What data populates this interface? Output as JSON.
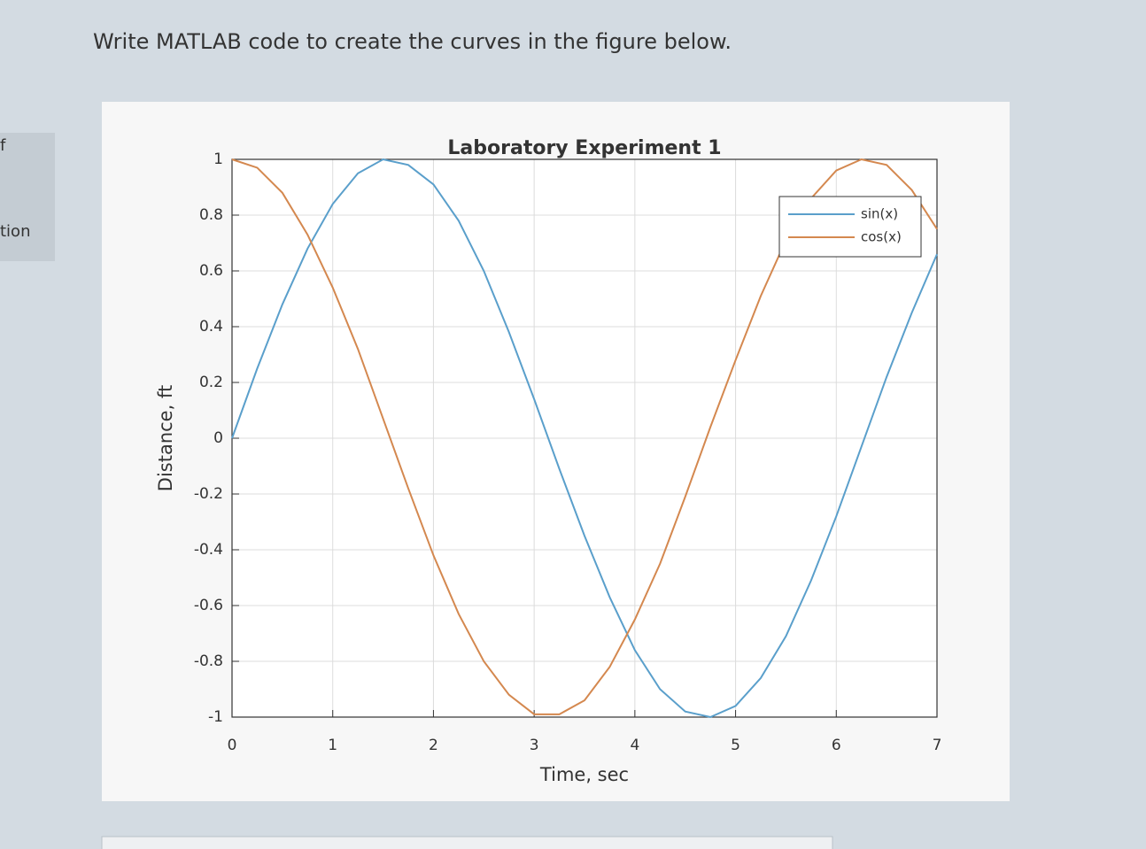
{
  "question": "Write MATLAB code to create the curves in the figure below.",
  "sidebar": [
    "f",
    "tion"
  ],
  "chart_data": {
    "type": "line",
    "title": "Laboratory Experiment 1",
    "x_label": "Time, sec",
    "y_label": "Distance, ft",
    "x": [
      0,
      0.25,
      0.5,
      0.75,
      1,
      1.25,
      1.5,
      1.75,
      2,
      2.25,
      2.5,
      2.75,
      3,
      3.25,
      3.5,
      3.75,
      4,
      4.25,
      4.5,
      4.75,
      5,
      5.25,
      5.5,
      5.75,
      6,
      6.25,
      6.5,
      6.75,
      7
    ],
    "series": [
      {
        "name": "sin(x)",
        "color": "#5a9fcb",
        "values": [
          0,
          0.25,
          0.48,
          0.68,
          0.84,
          0.95,
          1.0,
          0.98,
          0.91,
          0.78,
          0.6,
          0.38,
          0.14,
          -0.11,
          -0.35,
          -0.57,
          -0.76,
          -0.9,
          -0.98,
          -1.0,
          -0.96,
          -0.86,
          -0.71,
          -0.51,
          -0.28,
          -0.03,
          0.22,
          0.45,
          0.66
        ]
      },
      {
        "name": "cos(x)",
        "color": "#d4884f",
        "values": [
          1.0,
          0.97,
          0.88,
          0.73,
          0.54,
          0.32,
          0.07,
          -0.18,
          -0.42,
          -0.63,
          -0.8,
          -0.92,
          -0.99,
          -0.99,
          -0.94,
          -0.82,
          -0.65,
          -0.45,
          -0.21,
          0.04,
          0.28,
          0.51,
          0.71,
          0.86,
          0.96,
          1.0,
          0.98,
          0.89,
          0.75
        ]
      }
    ],
    "xlim": [
      0,
      7
    ],
    "ylim": [
      -1,
      1
    ],
    "xticks": [
      0,
      1,
      2,
      3,
      4,
      5,
      6,
      7
    ],
    "yticks": [
      -1,
      -0.8,
      -0.6,
      -0.4,
      -0.2,
      0,
      0.2,
      0.4,
      0.6,
      0.8,
      1
    ],
    "grid": true,
    "legend_position": "northeast"
  }
}
